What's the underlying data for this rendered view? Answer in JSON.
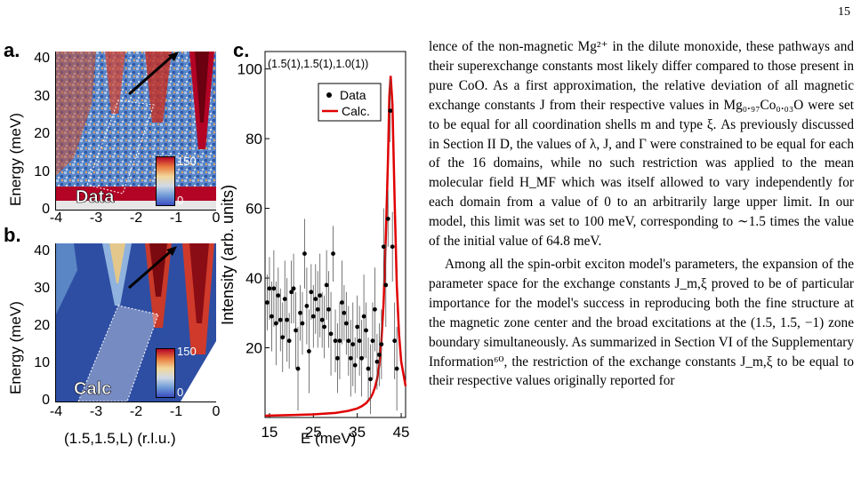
{
  "page_number": "15",
  "figure": {
    "panel_a": {
      "letter": "a.",
      "map_label": "Data",
      "ylabel": "Energy (meV)",
      "yticks": [
        "40",
        "30",
        "20",
        "10",
        "0"
      ],
      "xticks": [
        "-4",
        "-3",
        "-2",
        "-1",
        "0"
      ],
      "colorbar_max": "150",
      "colorbar_min": "0"
    },
    "panel_b": {
      "letter": "b.",
      "map_label": "Calc",
      "ylabel": "Energy (meV)",
      "yticks": [
        "40",
        "30",
        "20",
        "10",
        "0"
      ],
      "xticks": [
        "-4",
        "-3",
        "-2",
        "-1",
        "0"
      ],
      "xlabel": "(1.5,1.5,L) (r.l.u.)",
      "colorbar_max": "150",
      "colorbar_min": "0"
    },
    "panel_c": {
      "letter": "c.",
      "title": "(1.5(1),1.5(1),1.0(1))",
      "ylabel": "Intensity (arb. units)",
      "xlabel": "E (meV)",
      "yticks": [
        "100",
        "80",
        "60",
        "40",
        "20"
      ],
      "xticks": [
        "15",
        "25",
        "35",
        "45"
      ],
      "legend": [
        "Data",
        "Calc."
      ],
      "colors": {
        "data": "#000000",
        "calc": "#e00000"
      }
    }
  },
  "chart_data": {
    "type": "scatter",
    "title": "(1.5(1),1.5(1),1.0(1))",
    "xlabel": "E (meV)",
    "ylabel": "Intensity (arb. units)",
    "xlim": [
      14,
      46
    ],
    "ylim": [
      0,
      105
    ],
    "series": [
      {
        "name": "Data",
        "x": [
          14.5,
          15,
          15.5,
          16,
          16.5,
          17,
          17.5,
          18,
          18.5,
          19,
          19.5,
          20,
          20.5,
          21,
          21.5,
          22,
          22.5,
          23,
          23.5,
          24,
          24.5,
          25,
          25.5,
          26,
          26.5,
          27,
          27.5,
          28,
          28.5,
          29,
          29.5,
          30,
          30.5,
          31,
          31.5,
          32,
          32.5,
          33,
          33.5,
          34,
          34.5,
          35,
          35.5,
          36,
          36.5,
          37,
          37.5,
          38,
          38.5,
          39,
          39.5,
          40,
          40.5,
          41,
          41.5,
          42,
          42.5,
          43,
          43.5,
          44
        ],
        "y": [
          33,
          37,
          29,
          37,
          27,
          35,
          28,
          23,
          34,
          28,
          22,
          36,
          37,
          25,
          14,
          30,
          27,
          47,
          32,
          19,
          36,
          29,
          34,
          31,
          35,
          28,
          26,
          38,
          31,
          24,
          47,
          22,
          17,
          22,
          33,
          30,
          27,
          22,
          17,
          21,
          15,
          26,
          22,
          17,
          29,
          25,
          14,
          11,
          22,
          31,
          16,
          18,
          21,
          49,
          38,
          57,
          88,
          49,
          22,
          14
        ]
      },
      {
        "name": "Calc.",
        "x": [
          14,
          20,
          25,
          30,
          33,
          35,
          36,
          37,
          38,
          38.5,
          39,
          39.5,
          40,
          40.5,
          41,
          41.5,
          42,
          42.3,
          42.6,
          43,
          43.5,
          44,
          44.5,
          45,
          46
        ],
        "y": [
          0.5,
          0.7,
          0.9,
          1.3,
          1.9,
          2.6,
          3.2,
          4.1,
          5.6,
          6.8,
          8.5,
          11,
          15,
          22,
          33,
          52,
          75,
          92,
          98,
          90,
          62,
          38,
          24,
          16,
          9
        ]
      }
    ]
  },
  "body_text": {
    "para1": "lence of the non-magnetic Mg²⁺ in the dilute monoxide, these pathways and their superexchange constants most likely differ compared to those present in pure CoO. As a first approximation, the relative deviation of all magnetic exchange constants J from their respective values in Mg₀.₉₇Co₀.₀₃O were set to be equal for all coordination shells m and type ξ. As previously discussed in Section II D, the values of λ, J, and Γ were constrained to be equal for each of the 16 domains, while no such restriction was applied to the mean molecular field H_MF which was itself allowed to vary independently for each domain from a value of 0 to an arbitrarily large upper limit. In our model, this limit was set to 100 meV, corresponding to ∼1.5 times the value of the initial value of 64.8 meV.",
    "para2": "Among all the spin-orbit exciton model's parameters, the expansion of the parameter space for the exchange constants J_m,ξ proved to be of particular importance for the model's success in reproducing both the fine structure at the magnetic zone center and the broad excitations at the (1.5, 1.5, −1) zone boundary simultaneously. As summarized in Section VI of the Supplementary Information⁶⁰, the restriction of the exchange constants J_m,ξ to be equal to their respective values originally reported for"
  }
}
